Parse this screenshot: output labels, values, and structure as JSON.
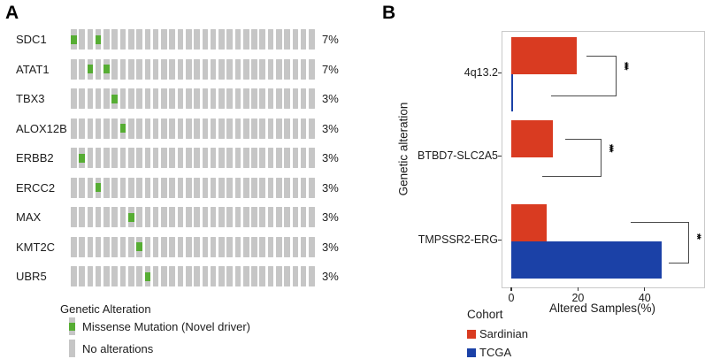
{
  "panel_a": {
    "label": "A"
  },
  "panel_b": {
    "label": "B"
  },
  "colors": {
    "missense_green": "#56ad33",
    "tile_gray": "#c6c6c6",
    "sardinian_red": "#d93b21",
    "tcga_blue": "#1b41a7",
    "bracket_gray": "#4a4a4a"
  },
  "chart_data": [
    {
      "type": "heatmap",
      "name": "oncoprint",
      "n_samples": 30,
      "rows": [
        {
          "gene": "SDC1",
          "pct": "7%",
          "mutated_samples": [
            1,
            4
          ]
        },
        {
          "gene": "ATAT1",
          "pct": "7%",
          "mutated_samples": [
            3,
            5
          ]
        },
        {
          "gene": "TBX3",
          "pct": "3%",
          "mutated_samples": [
            6
          ]
        },
        {
          "gene": "ALOX12B",
          "pct": "3%",
          "mutated_samples": [
            7
          ]
        },
        {
          "gene": "ERBB2",
          "pct": "3%",
          "mutated_samples": [
            2
          ]
        },
        {
          "gene": "ERCC2",
          "pct": "3%",
          "mutated_samples": [
            4
          ]
        },
        {
          "gene": "MAX",
          "pct": "3%",
          "mutated_samples": [
            8
          ]
        },
        {
          "gene": "KMT2C",
          "pct": "3%",
          "mutated_samples": [
            9
          ]
        },
        {
          "gene": "UBR5",
          "pct": "3%",
          "mutated_samples": [
            10
          ]
        }
      ],
      "legend": {
        "title": "Genetic Alteration",
        "items": [
          {
            "label": "Missense Mutation (Novel driver)",
            "type": "missense"
          },
          {
            "label": "No alterations",
            "type": "none"
          }
        ]
      }
    },
    {
      "type": "bar",
      "orientation": "horizontal",
      "categories": [
        "4q13.2",
        "BTBD7-SLC2A5",
        "TMPSSR2-ERG"
      ],
      "series": [
        {
          "name": "Sardinian",
          "color": "#d93b21",
          "values": [
            19.5,
            12.5,
            10.5
          ]
        },
        {
          "name": "TCGA",
          "color": "#1b41a7",
          "values": [
            0.4,
            0,
            45
          ]
        }
      ],
      "significance": [
        "***",
        "***",
        "**"
      ],
      "xlabel": "Altered Samples(%)",
      "ylabel": "Genetic alteration",
      "xticks": [
        0,
        20,
        40
      ],
      "xlim": [
        0,
        57
      ],
      "legend_title": "Cohort",
      "legend_position": "bottom-left",
      "grid": false
    }
  ]
}
